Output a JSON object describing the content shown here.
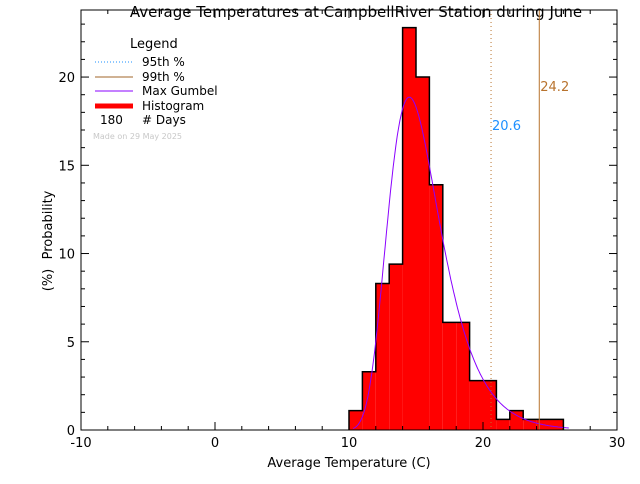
{
  "chart_data": {
    "type": "bar",
    "title": "Average Temperatures at CampbellRiver Station during June",
    "xlabel": "Average Temperature (C)",
    "ylabel": "Probability",
    "ylabel_unit": "(%)",
    "xlim": [
      -10,
      30
    ],
    "ylim": [
      0,
      23.8
    ],
    "xticks": [
      -10,
      0,
      10,
      20,
      30
    ],
    "yticks": [
      0,
      5,
      10,
      15,
      20
    ],
    "histogram": {
      "bin_edges": [
        10,
        11,
        12,
        13,
        14,
        15,
        16,
        17,
        18,
        19,
        20,
        21,
        22,
        23,
        24,
        25,
        26
      ],
      "values": [
        1.1,
        3.3,
        8.3,
        9.4,
        22.8,
        20.0,
        13.9,
        6.1,
        6.1,
        2.8,
        2.8,
        0.6,
        1.1,
        0.6,
        0.6,
        0.6
      ]
    },
    "gumbel": {
      "mode": 14.5,
      "scale": 1.95
    },
    "percentile_95": {
      "value": 20.6,
      "label": "20.6",
      "color": "#1e90ff",
      "line_color": "#b8732e"
    },
    "percentile_99": {
      "value": 24.2,
      "label": "24.2",
      "color": "#b8732e"
    },
    "legend": {
      "title": "Legend",
      "placement": "top-left",
      "entries": [
        {
          "label": "95th %",
          "style": "dotted",
          "color": "#1e90ff"
        },
        {
          "label": "99th %",
          "style": "solid",
          "color": "#a0642a"
        },
        {
          "label": "Max Gumbel",
          "style": "solid",
          "color": "#8a00ff"
        },
        {
          "label": "Histogram",
          "style": "thick",
          "color": "#ff0000"
        }
      ],
      "days_count": "180",
      "days_label": "# Days",
      "made_on": "Made on 29 May 2025"
    },
    "colors": {
      "bar": "#ff0000",
      "gumbel": "#8a00ff"
    }
  }
}
